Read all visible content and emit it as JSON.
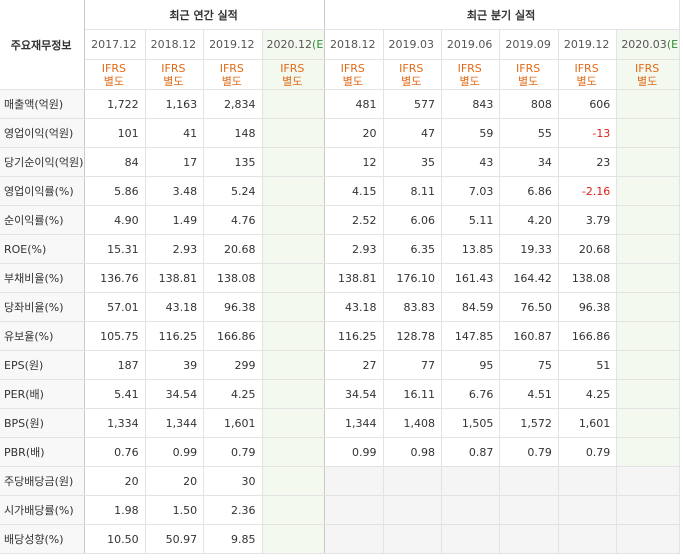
{
  "header": {
    "corner_label": "주요재무정보",
    "annual_title": "최근 연간 실적",
    "quarter_title": "최근 분기 실적",
    "annual_periods": [
      "2017.12",
      "2018.12",
      "2019.12"
    ],
    "annual_estimate_period": "2020.12",
    "quarter_periods": [
      "2018.12",
      "2019.03",
      "2019.06",
      "2019.09",
      "2019.12"
    ],
    "quarter_estimate_period": "2020.03",
    "estimate_mark": "(E)",
    "ifrs_label": "IFRS",
    "separate_label": "별도"
  },
  "rows": [
    {
      "label": "매출액(억원)",
      "annual": [
        "1,722",
        "1,163",
        "2,834"
      ],
      "annual_est": "",
      "quarter": [
        "481",
        "577",
        "843",
        "808",
        "606"
      ],
      "quarter_est": ""
    },
    {
      "label": "영업이익(억원)",
      "annual": [
        "101",
        "41",
        "148"
      ],
      "annual_est": "",
      "quarter": [
        "20",
        "47",
        "59",
        "55",
        "-13"
      ],
      "quarter_est": ""
    },
    {
      "label": "당기순이익(억원)",
      "annual": [
        "84",
        "17",
        "135"
      ],
      "annual_est": "",
      "quarter": [
        "12",
        "35",
        "43",
        "34",
        "23"
      ],
      "quarter_est": ""
    },
    {
      "label": "영업이익률(%)",
      "annual": [
        "5.86",
        "3.48",
        "5.24"
      ],
      "annual_est": "",
      "quarter": [
        "4.15",
        "8.11",
        "7.03",
        "6.86",
        "-2.16"
      ],
      "quarter_est": ""
    },
    {
      "label": "순이익률(%)",
      "annual": [
        "4.90",
        "1.49",
        "4.76"
      ],
      "annual_est": "",
      "quarter": [
        "2.52",
        "6.06",
        "5.11",
        "4.20",
        "3.79"
      ],
      "quarter_est": ""
    },
    {
      "label": "ROE(%)",
      "annual": [
        "15.31",
        "2.93",
        "20.68"
      ],
      "annual_est": "",
      "quarter": [
        "2.93",
        "6.35",
        "13.85",
        "19.33",
        "20.68"
      ],
      "quarter_est": ""
    },
    {
      "label": "부채비율(%)",
      "annual": [
        "136.76",
        "138.81",
        "138.08"
      ],
      "annual_est": "",
      "quarter": [
        "138.81",
        "176.10",
        "161.43",
        "164.42",
        "138.08"
      ],
      "quarter_est": ""
    },
    {
      "label": "당좌비율(%)",
      "annual": [
        "57.01",
        "43.18",
        "96.38"
      ],
      "annual_est": "",
      "quarter": [
        "43.18",
        "83.83",
        "84.59",
        "76.50",
        "96.38"
      ],
      "quarter_est": ""
    },
    {
      "label": "유보율(%)",
      "annual": [
        "105.75",
        "116.25",
        "166.86"
      ],
      "annual_est": "",
      "quarter": [
        "116.25",
        "128.78",
        "147.85",
        "160.87",
        "166.86"
      ],
      "quarter_est": ""
    },
    {
      "label": "EPS(원)",
      "annual": [
        "187",
        "39",
        "299"
      ],
      "annual_est": "",
      "quarter": [
        "27",
        "77",
        "95",
        "75",
        "51"
      ],
      "quarter_est": ""
    },
    {
      "label": "PER(배)",
      "annual": [
        "5.41",
        "34.54",
        "4.25"
      ],
      "annual_est": "",
      "quarter": [
        "34.54",
        "16.11",
        "6.76",
        "4.51",
        "4.25"
      ],
      "quarter_est": ""
    },
    {
      "label": "BPS(원)",
      "annual": [
        "1,334",
        "1,344",
        "1,601"
      ],
      "annual_est": "",
      "quarter": [
        "1,344",
        "1,408",
        "1,505",
        "1,572",
        "1,601"
      ],
      "quarter_est": ""
    },
    {
      "label": "PBR(배)",
      "annual": [
        "0.76",
        "0.99",
        "0.79"
      ],
      "annual_est": "",
      "quarter": [
        "0.99",
        "0.98",
        "0.87",
        "0.79",
        "0.79"
      ],
      "quarter_est": ""
    },
    {
      "label": "주당배당금(원)",
      "annual": [
        "20",
        "20",
        "30"
      ],
      "annual_est": "",
      "quarter": [
        "",
        "",
        "",
        "",
        ""
      ],
      "quarter_est": ""
    },
    {
      "label": "시가배당률(%)",
      "annual": [
        "1.98",
        "1.50",
        "2.36"
      ],
      "annual_est": "",
      "quarter": [
        "",
        "",
        "",
        "",
        ""
      ],
      "quarter_est": ""
    },
    {
      "label": "배당성향(%)",
      "annual": [
        "10.50",
        "50.97",
        "9.85"
      ],
      "annual_est": "",
      "quarter": [
        "",
        "",
        "",
        "",
        ""
      ],
      "quarter_est": ""
    }
  ],
  "negative_color": "#e0201c",
  "ifrs_color": "#e26b17",
  "estimate_color": "#2e8b3a"
}
